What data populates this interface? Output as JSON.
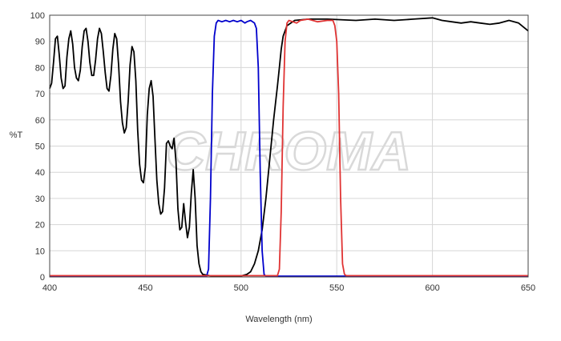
{
  "chart_data": {
    "type": "line",
    "title": "",
    "xlabel": "Wavelength (nm)",
    "ylabel": "%T",
    "xlim": [
      400,
      650
    ],
    "ylim": [
      0,
      100
    ],
    "x_ticks": [
      400,
      450,
      500,
      550,
      600,
      650
    ],
    "y_ticks": [
      0,
      10,
      20,
      30,
      40,
      50,
      60,
      70,
      80,
      90,
      100
    ],
    "grid": true,
    "legend": "none",
    "watermark": "CHROMA",
    "series": [
      {
        "color": "#000000",
        "points": [
          [
            400,
            72
          ],
          [
            401,
            74
          ],
          [
            402,
            82
          ],
          [
            403,
            91
          ],
          [
            404,
            92
          ],
          [
            405,
            85
          ],
          [
            406,
            76
          ],
          [
            407,
            72
          ],
          [
            408,
            73
          ],
          [
            409,
            84
          ],
          [
            410,
            91
          ],
          [
            411,
            94
          ],
          [
            412,
            89
          ],
          [
            413,
            80
          ],
          [
            414,
            76
          ],
          [
            415,
            75
          ],
          [
            416,
            79
          ],
          [
            417,
            88
          ],
          [
            418,
            94
          ],
          [
            419,
            95
          ],
          [
            420,
            90
          ],
          [
            421,
            82
          ],
          [
            422,
            77
          ],
          [
            423,
            77
          ],
          [
            424,
            83
          ],
          [
            425,
            91
          ],
          [
            426,
            95
          ],
          [
            427,
            93
          ],
          [
            428,
            86
          ],
          [
            429,
            78
          ],
          [
            430,
            72
          ],
          [
            431,
            71
          ],
          [
            432,
            77
          ],
          [
            433,
            87
          ],
          [
            434,
            93
          ],
          [
            435,
            91
          ],
          [
            436,
            81
          ],
          [
            437,
            67
          ],
          [
            438,
            59
          ],
          [
            439,
            55
          ],
          [
            440,
            57
          ],
          [
            441,
            67
          ],
          [
            442,
            81
          ],
          [
            443,
            88
          ],
          [
            444,
            86
          ],
          [
            445,
            75
          ],
          [
            446,
            56
          ],
          [
            447,
            43
          ],
          [
            448,
            37
          ],
          [
            449,
            36
          ],
          [
            450,
            42
          ],
          [
            451,
            62
          ],
          [
            452,
            72
          ],
          [
            453,
            75
          ],
          [
            454,
            69
          ],
          [
            455,
            53
          ],
          [
            456,
            37
          ],
          [
            457,
            28
          ],
          [
            458,
            24
          ],
          [
            459,
            25
          ],
          [
            460,
            34
          ],
          [
            461,
            51
          ],
          [
            462,
            52
          ],
          [
            463,
            50
          ],
          [
            464,
            49
          ],
          [
            465,
            53
          ],
          [
            466,
            44
          ],
          [
            467,
            26
          ],
          [
            468,
            18
          ],
          [
            469,
            19
          ],
          [
            470,
            28
          ],
          [
            471,
            21
          ],
          [
            472,
            15
          ],
          [
            473,
            19
          ],
          [
            474,
            32
          ],
          [
            475,
            41
          ],
          [
            476,
            30
          ],
          [
            477,
            12
          ],
          [
            478,
            5
          ],
          [
            479,
            2
          ],
          [
            480,
            1
          ],
          [
            485,
            0.3
          ],
          [
            495,
            0.3
          ],
          [
            500,
            0.4
          ],
          [
            503,
            1
          ],
          [
            505,
            2
          ],
          [
            507,
            5
          ],
          [
            509,
            10
          ],
          [
            511,
            18
          ],
          [
            513,
            30
          ],
          [
            515,
            45
          ],
          [
            517,
            60
          ],
          [
            519,
            73
          ],
          [
            520,
            80
          ],
          [
            521,
            87
          ],
          [
            522,
            92
          ],
          [
            524,
            96
          ],
          [
            526,
            97
          ],
          [
            528,
            98
          ],
          [
            535,
            98.5
          ],
          [
            545,
            98.5
          ],
          [
            560,
            98
          ],
          [
            570,
            98.5
          ],
          [
            580,
            98
          ],
          [
            590,
            98.5
          ],
          [
            600,
            99
          ],
          [
            605,
            98
          ],
          [
            610,
            97.5
          ],
          [
            615,
            97
          ],
          [
            620,
            97.5
          ],
          [
            625,
            97
          ],
          [
            630,
            96.5
          ],
          [
            635,
            97
          ],
          [
            640,
            98
          ],
          [
            645,
            97
          ],
          [
            650,
            94
          ]
        ]
      },
      {
        "color": "#0000cc",
        "points": [
          [
            400,
            0.3
          ],
          [
            482,
            0.3
          ],
          [
            483,
            3
          ],
          [
            484,
            30
          ],
          [
            485,
            70
          ],
          [
            486,
            92
          ],
          [
            487,
            97
          ],
          [
            488,
            98
          ],
          [
            490,
            97.5
          ],
          [
            492,
            98
          ],
          [
            494,
            97.5
          ],
          [
            496,
            98
          ],
          [
            498,
            97.5
          ],
          [
            500,
            98
          ],
          [
            502,
            97
          ],
          [
            503,
            97.5
          ],
          [
            505,
            98
          ],
          [
            507,
            97
          ],
          [
            508,
            95
          ],
          [
            509,
            80
          ],
          [
            510,
            40
          ],
          [
            511,
            10
          ],
          [
            512,
            1
          ],
          [
            513,
            0.3
          ],
          [
            650,
            0.3
          ]
        ]
      },
      {
        "color": "#e03333",
        "points": [
          [
            400,
            0.5
          ],
          [
            519,
            0.5
          ],
          [
            520,
            3
          ],
          [
            521,
            25
          ],
          [
            522,
            65
          ],
          [
            523,
            90
          ],
          [
            524,
            97
          ],
          [
            525,
            98
          ],
          [
            527,
            97.5
          ],
          [
            529,
            97
          ],
          [
            531,
            98
          ],
          [
            535,
            98.5
          ],
          [
            540,
            97.5
          ],
          [
            545,
            98
          ],
          [
            548,
            98
          ],
          [
            549,
            96
          ],
          [
            550,
            90
          ],
          [
            551,
            70
          ],
          [
            552,
            30
          ],
          [
            553,
            5
          ],
          [
            554,
            1
          ],
          [
            555,
            0.5
          ],
          [
            650,
            0.5
          ]
        ]
      }
    ]
  }
}
